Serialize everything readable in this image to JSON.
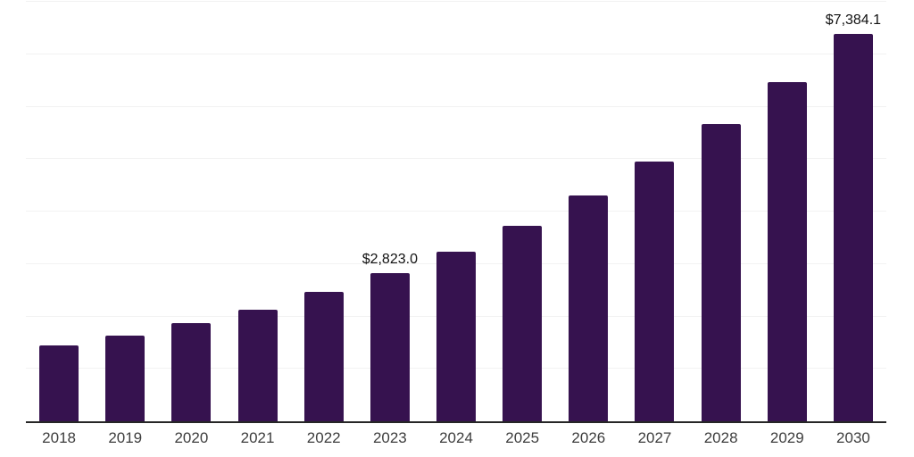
{
  "chart_data": {
    "type": "bar",
    "title": "",
    "xlabel": "",
    "ylabel": "",
    "categories": [
      "2018",
      "2019",
      "2020",
      "2021",
      "2022",
      "2023",
      "2024",
      "2025",
      "2026",
      "2027",
      "2028",
      "2029",
      "2030"
    ],
    "values": [
      1440,
      1640,
      1865,
      2135,
      2460,
      2823.0,
      3240,
      3735,
      4300,
      4945,
      5660,
      6475,
      7384.1
    ],
    "data_labels": [
      "",
      "",
      "",
      "",
      "",
      "$2,823.0",
      "",
      "",
      "",
      "",
      "",
      "",
      "$7,384.1"
    ],
    "ylim": [
      0,
      8000
    ],
    "gridline_step": 1000,
    "grid": "horizontal-only",
    "legend_position": "none",
    "y_axis_tick_labels": "none",
    "colors": {
      "bar": "#36124F",
      "axis_line": "#262626",
      "gridline": "#f2f2f2",
      "tick_label": "#3d3d3d",
      "data_label": "#111111",
      "background": "#ffffff"
    }
  }
}
